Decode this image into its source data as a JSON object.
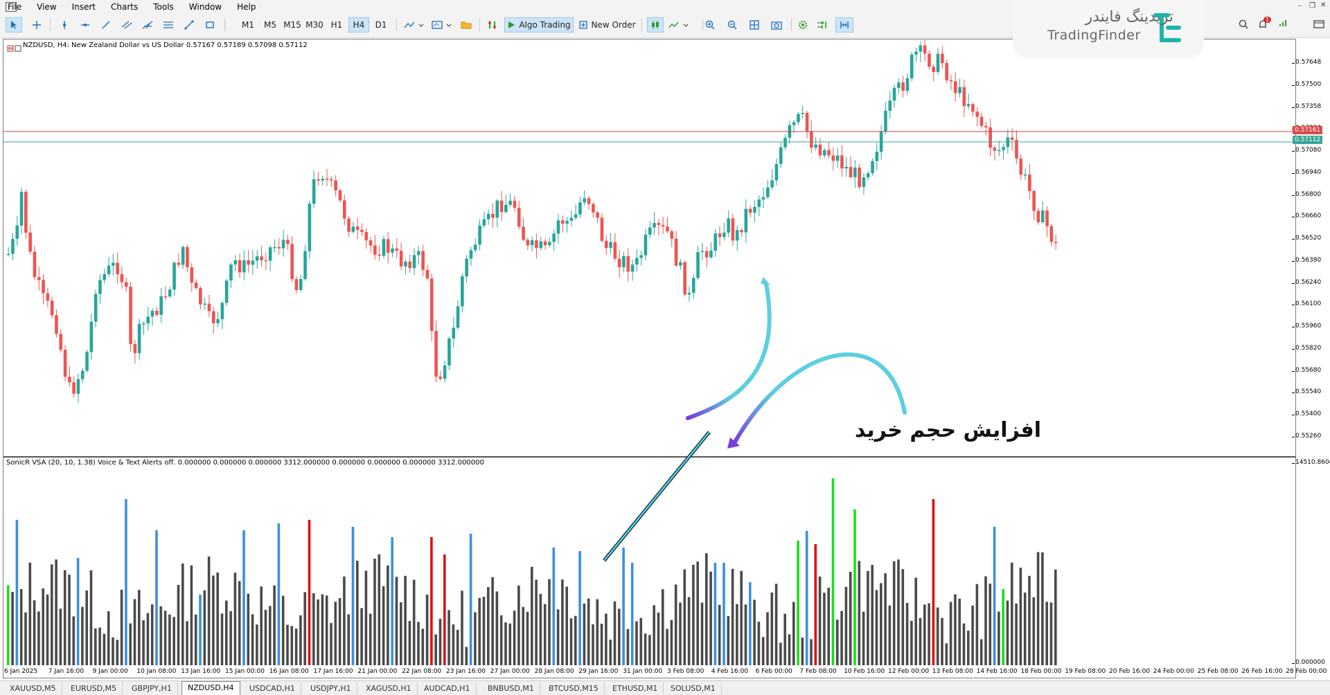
{
  "menu": [
    "File",
    "View",
    "Insert",
    "Charts",
    "Tools",
    "Window",
    "Help"
  ],
  "toolbar": {
    "timeframes": [
      "M1",
      "M5",
      "M15",
      "M30",
      "H1",
      "H4",
      "D1"
    ],
    "active_timeframe": "H4",
    "algo_trading": "Algo Trading",
    "new_order": "New Order"
  },
  "watermark": {
    "fa": "تریدینگ فایندر",
    "en": "TradingFinder"
  },
  "notification_count": "1",
  "chart": {
    "title": "NZDUSD, H4:  New Zealand Dollar vs US Dollar  0.57167 0.57189 0.57098 0.57112",
    "indicator_title": "SonicR VSA (20, 10, 1.38) Voice & Text Alerts off.  0.000000 0.000000 0.000000 3312.000000 0.000000 0.000000 0.000000 3312.000000",
    "annotation": "افزایش حجم خرید",
    "price_ticks": [
      "0.57648",
      "0.57500",
      "0.57358",
      "0.57220",
      "0.57080",
      "0.56940",
      "0.56800",
      "0.56660",
      "0.56520",
      "0.56380",
      "0.56240",
      "0.56100",
      "0.55960",
      "0.55820",
      "0.55680",
      "0.55540",
      "0.55400",
      "0.55260"
    ],
    "price_tag_red": "0.57161",
    "price_tag_teal": "0.57112",
    "indicator_ticks": [
      "14510.8604",
      "0.000000"
    ],
    "time_labels": [
      "6 Jan 2025",
      "7 Jan 16:00",
      "9 Jan 00:00",
      "10 Jan 08:00",
      "13 Jan 16:00",
      "15 Jan 00:00",
      "16 Jan 08:00",
      "17 Jan 16:00",
      "21 Jan 00:00",
      "22 Jan 08:00",
      "23 Jan 16:00",
      "27 Jan 00:00",
      "28 Jan 08:00",
      "29 Jan 16:00",
      "31 Jan 00:00",
      "3 Feb 08:00",
      "4 Feb 16:00",
      "6 Feb 00:00",
      "7 Feb 08:00",
      "10 Feb 16:00",
      "12 Feb 00:00",
      "13 Feb 08:00",
      "14 Feb 16:00",
      "18 Feb 00:00",
      "19 Feb 08:00",
      "20 Feb 16:00",
      "24 Feb 00:00",
      "25 Feb 08:00",
      "26 Feb 16:00",
      "28 Feb 00:00"
    ]
  },
  "tabs": [
    "XAUUSD,M5",
    "EURUSD,M5",
    "GBPJPY,H1",
    "NZDUSD,H4",
    "USDCAD,H1",
    "USDJPY,H1",
    "XAGUSD,H1",
    "AUDCAD,H1",
    "BNBUSD,M1",
    "BTCUSD,M15",
    "ETHUSD,M1",
    "SOLUSD,M1"
  ],
  "active_tab": "NZDUSD,H4",
  "colors": {
    "bull": "#26a69a",
    "bear": "#ef5350",
    "vol_gray": "#4a4a4a",
    "vol_blue": "#3d8fe0",
    "vol_red": "#e01010",
    "vol_green": "#18e018",
    "accent": "#0078d7"
  }
}
